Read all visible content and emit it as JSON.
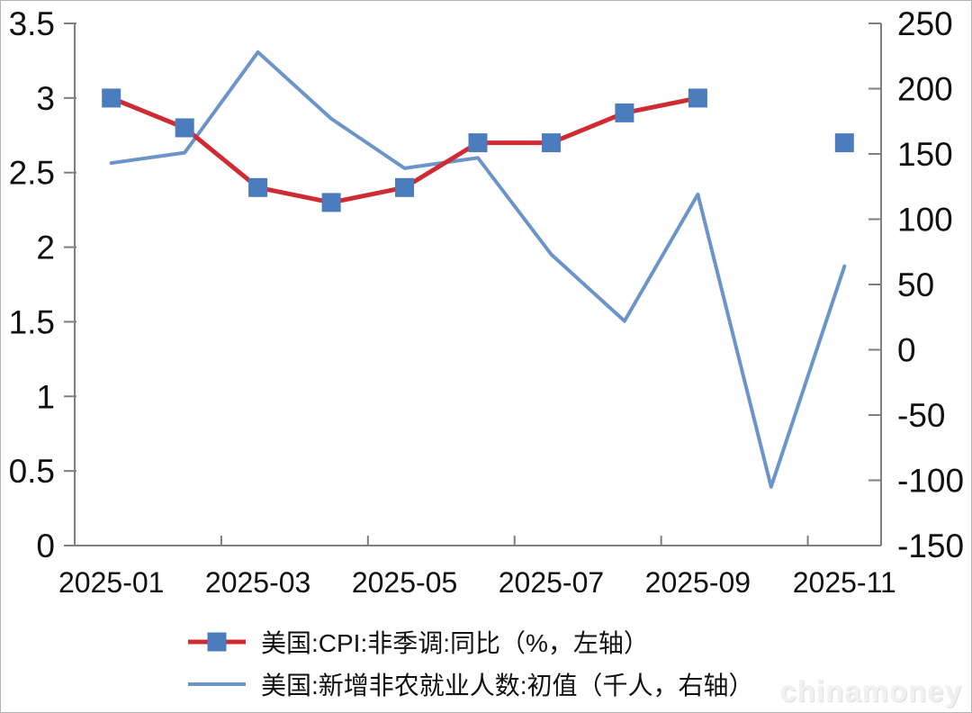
{
  "chart_data": {
    "type": "line",
    "categories": [
      "2025-01",
      "2025-02",
      "2025-03",
      "2025-04",
      "2025-05",
      "2025-06",
      "2025-07",
      "2025-08",
      "2025-09",
      "2025-10",
      "2025-11"
    ],
    "x_tick_labels": [
      "2025-01",
      "2025-03",
      "2025-05",
      "2025-07",
      "2025-09",
      "2025-11"
    ],
    "x_tick_indices": [
      0,
      2,
      4,
      6,
      8,
      10
    ],
    "series": [
      {
        "name": "美国:新增非农就业人数:初值（千人，右轴）",
        "axis": "right",
        "color": "#6b94c9",
        "line_width": 4,
        "marker": "none",
        "values": [
          143,
          151,
          228,
          177,
          139,
          147,
          73,
          22,
          119,
          -105,
          64
        ]
      },
      {
        "name": "美国:CPI:非季调:同比（%，左轴）",
        "axis": "left",
        "color": "#d02a33",
        "line_width": 5,
        "marker": "square",
        "marker_color": "#4a7cbe",
        "marker_size": 21,
        "values": [
          3.0,
          2.8,
          2.4,
          2.3,
          2.4,
          2.7,
          2.7,
          2.9,
          3.0,
          null,
          2.7
        ]
      }
    ],
    "left_axis": {
      "min": 0,
      "max": 3.5,
      "tick_values": [
        3.5,
        3,
        2.5,
        2,
        1.5,
        1,
        0.5,
        0
      ],
      "tick_labels": [
        "3.5",
        "3",
        "2.5",
        "2",
        "1.5",
        "1",
        "0.5",
        "0"
      ]
    },
    "right_axis": {
      "min": -150,
      "max": 250,
      "tick_values": [
        250,
        200,
        150,
        100,
        50,
        0,
        -50,
        -100,
        -150
      ],
      "tick_labels": [
        "250",
        "200",
        "150",
        "100",
        "50",
        "0",
        "-50",
        "-100",
        "-150"
      ]
    },
    "grid": false,
    "legend_position": "bottom",
    "title": "",
    "xlabel": "",
    "ylabel": ""
  },
  "legend": {
    "items": [
      {
        "label": "美国:CPI:非季调:同比（%，左轴）",
        "series_index": 1
      },
      {
        "label": "美国:新增非农就业人数:初值（千人，右轴）",
        "series_index": 0
      }
    ]
  },
  "watermark": "chinamoney",
  "colors": {
    "cpi_line": "#d02a33",
    "marker_blue": "#4a7cbe",
    "payroll_line": "#6b94c9",
    "axis": "#7f7f7f",
    "label_text": "#111111",
    "background": "#ffffff"
  }
}
